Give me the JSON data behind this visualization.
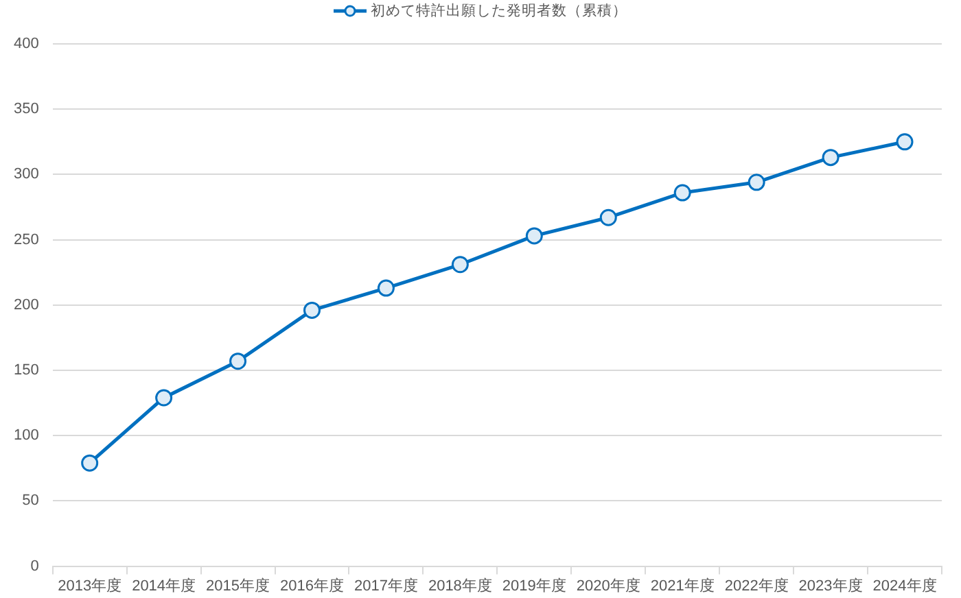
{
  "chart_data": {
    "type": "line",
    "categories": [
      "2013年度",
      "2014年度",
      "2015年度",
      "2016年度",
      "2017年度",
      "2018年度",
      "2019年度",
      "2020年度",
      "2021年度",
      "2022年度",
      "2023年度",
      "2024年度"
    ],
    "series": [
      {
        "name": "初めて特許出願した発明者数（累積）",
        "color": "#0070c0",
        "values": [
          79,
          129,
          157,
          196,
          213,
          231,
          253,
          267,
          286,
          294,
          313,
          325
        ]
      }
    ],
    "ylim": [
      0,
      400
    ],
    "yticks": [
      0,
      50,
      100,
      150,
      200,
      250,
      300,
      350,
      400
    ],
    "grid": "y",
    "legend": "top",
    "marker": "circle",
    "line_style": "solid"
  }
}
